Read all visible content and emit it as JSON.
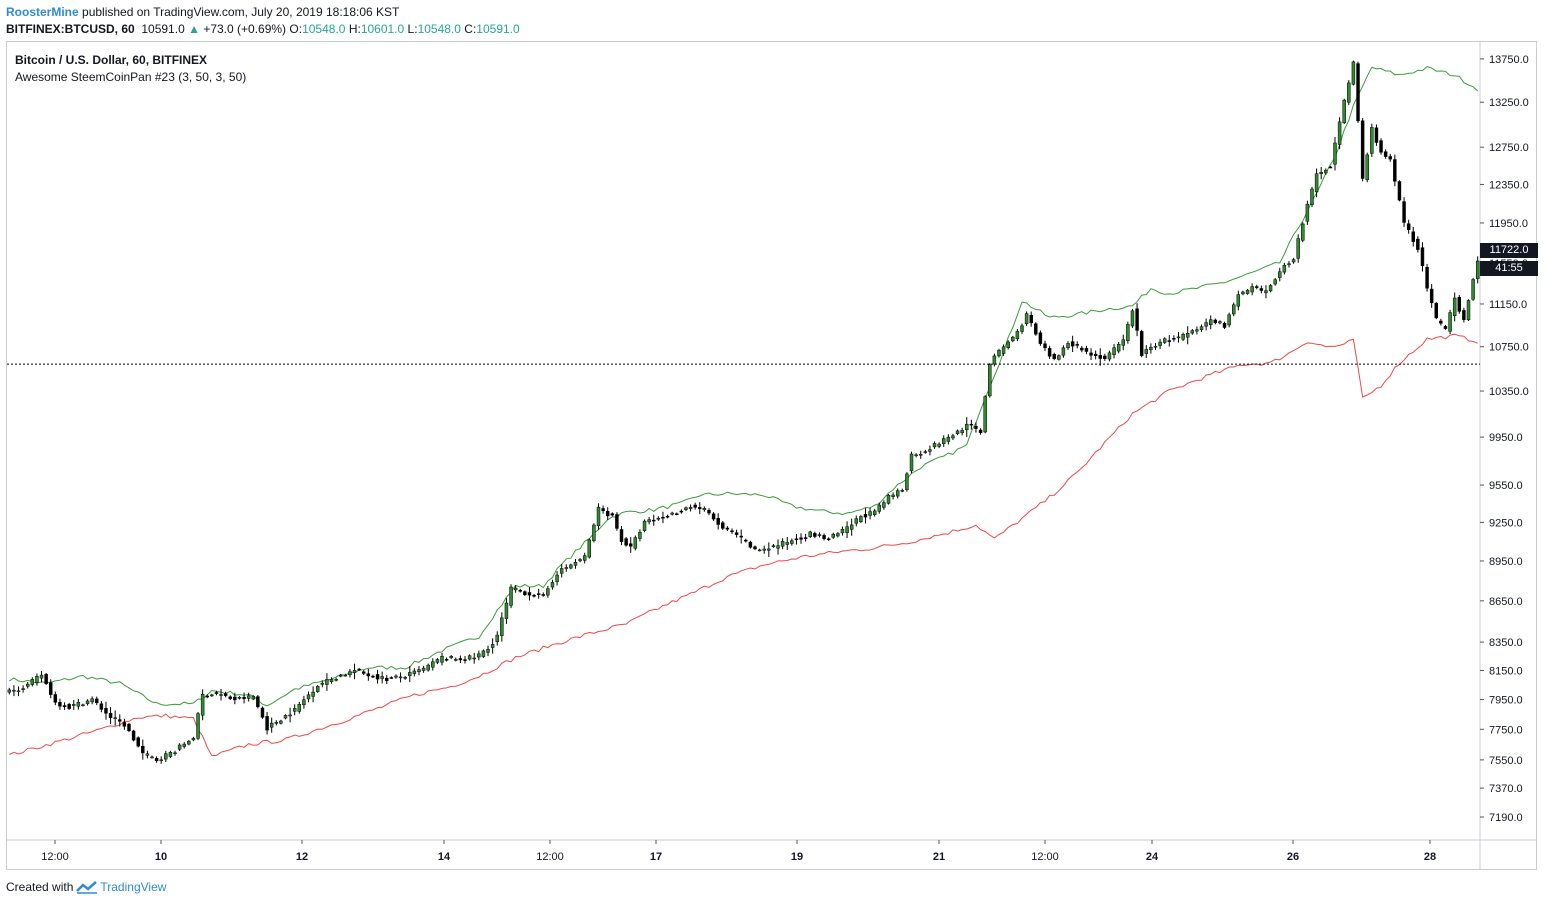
{
  "header": {
    "author": "RoosterMine",
    "published_text": "published on TradingView.com, July 20, 2019 18:18:06 KST",
    "symbol": "BITFINEX:BTCUSD, 60",
    "last": "10591.0",
    "change": "+73.0 (+0.69%)",
    "o_label": "O:",
    "o_value": "10548.0",
    "h_label": "H:",
    "h_value": "10601.0",
    "l_label": "L:",
    "l_value": "10548.0",
    "c_label": "C:",
    "c_value": "10591.0"
  },
  "legend": {
    "title": "Bitcoin / U.S. Dollar, 60, BITFINEX",
    "indicator": "Awesome SteemCoinPan #23 (3, 50, 3, 50)"
  },
  "price_tags": {
    "price": "11722.0",
    "countdown": "41:55"
  },
  "footer": {
    "created_with": "Created with",
    "brand": "TradingView"
  },
  "colors": {
    "upper_band": "#3c9b3c",
    "lower_band": "#f04848",
    "candles": "#000000",
    "up_body": "#2e8b2e"
  },
  "chart_data": {
    "type": "candlestick",
    "x_tick_labels": [
      "12:00",
      "10",
      "12",
      "14",
      "12:00",
      "17",
      "19",
      "21",
      "12:00",
      "24",
      "26",
      "28"
    ],
    "y_tick_labels": [
      "13750.0",
      "13250.0",
      "12750.0",
      "12350.0",
      "11950.0",
      "11550.0",
      "11150.0",
      "10750.0",
      "10350.0",
      "9950.0",
      "9550.0",
      "9250.0",
      "8950.0",
      "8650.0",
      "8350.0",
      "8150.0",
      "7950.0",
      "7750.0",
      "7550.0",
      "7370.0",
      "7190.0"
    ],
    "y_axis_scale": "log",
    "ylim": [
      7050,
      13950
    ],
    "horizontal_line": 10591,
    "close_path": [
      [
        0,
        8000
      ],
      [
        4,
        8050
      ],
      [
        7,
        8120
      ],
      [
        10,
        7930
      ],
      [
        13,
        7900
      ],
      [
        18,
        7950
      ],
      [
        22,
        7830
      ],
      [
        25,
        7780
      ],
      [
        29,
        7590
      ],
      [
        32,
        7550
      ],
      [
        36,
        7610
      ],
      [
        40,
        7700
      ],
      [
        42,
        7980
      ],
      [
        45,
        7990
      ],
      [
        49,
        7950
      ],
      [
        53,
        7970
      ],
      [
        56,
        7760
      ],
      [
        59,
        7820
      ],
      [
        62,
        7880
      ],
      [
        67,
        8050
      ],
      [
        70,
        8090
      ],
      [
        75,
        8150
      ],
      [
        78,
        8120
      ],
      [
        82,
        8090
      ],
      [
        86,
        8110
      ],
      [
        90,
        8160
      ],
      [
        94,
        8240
      ],
      [
        97,
        8230
      ],
      [
        101,
        8240
      ],
      [
        104,
        8300
      ],
      [
        106,
        8400
      ],
      [
        109,
        8740
      ],
      [
        112,
        8710
      ],
      [
        116,
        8680
      ],
      [
        119,
        8860
      ],
      [
        122,
        8920
      ],
      [
        125,
        8980
      ],
      [
        128,
        9360
      ],
      [
        131,
        9300
      ],
      [
        133,
        9110
      ],
      [
        135,
        9050
      ],
      [
        138,
        9250
      ],
      [
        141,
        9280
      ],
      [
        145,
        9330
      ],
      [
        148,
        9380
      ],
      [
        151,
        9350
      ],
      [
        155,
        9200
      ],
      [
        158,
        9150
      ],
      [
        162,
        9030
      ],
      [
        166,
        9060
      ],
      [
        170,
        9110
      ],
      [
        174,
        9160
      ],
      [
        178,
        9120
      ],
      [
        182,
        9200
      ],
      [
        185,
        9300
      ],
      [
        188,
        9330
      ],
      [
        191,
        9450
      ],
      [
        194,
        9520
      ],
      [
        196,
        9800
      ],
      [
        198,
        9820
      ],
      [
        201,
        9880
      ],
      [
        205,
        9970
      ],
      [
        208,
        10050
      ],
      [
        211,
        10000
      ],
      [
        213,
        10600
      ],
      [
        216,
        10750
      ],
      [
        219,
        10880
      ],
      [
        221,
        11050
      ],
      [
        224,
        10770
      ],
      [
        227,
        10620
      ],
      [
        230,
        10800
      ],
      [
        234,
        10700
      ],
      [
        238,
        10640
      ],
      [
        242,
        10800
      ],
      [
        244,
        11100
      ],
      [
        246,
        10680
      ],
      [
        250,
        10800
      ],
      [
        254,
        10830
      ],
      [
        258,
        10900
      ],
      [
        261,
        11000
      ],
      [
        264,
        10950
      ],
      [
        267,
        11230
      ],
      [
        270,
        11300
      ],
      [
        273,
        11260
      ],
      [
        276,
        11470
      ],
      [
        279,
        11600
      ],
      [
        281,
        11960
      ],
      [
        284,
        12450
      ],
      [
        287,
        12560
      ],
      [
        290,
        13250
      ],
      [
        292,
        13700
      ],
      [
        294,
        12400
      ],
      [
        296,
        12950
      ],
      [
        298,
        12700
      ],
      [
        300,
        12600
      ],
      [
        303,
        11950
      ],
      [
        306,
        11700
      ],
      [
        308,
        11300
      ],
      [
        310,
        11000
      ],
      [
        312,
        10900
      ],
      [
        314,
        11200
      ],
      [
        316,
        11000
      ],
      [
        318,
        11400
      ],
      [
        319,
        11550
      ]
    ],
    "upper_band_path": [
      [
        0,
        8090
      ],
      [
        8,
        8060
      ],
      [
        16,
        8110
      ],
      [
        24,
        8060
      ],
      [
        32,
        7920
      ],
      [
        40,
        7920
      ],
      [
        44,
        8010
      ],
      [
        52,
        7980
      ],
      [
        56,
        7910
      ],
      [
        62,
        8020
      ],
      [
        70,
        8090
      ],
      [
        78,
        8170
      ],
      [
        86,
        8170
      ],
      [
        94,
        8290
      ],
      [
        102,
        8390
      ],
      [
        106,
        8580
      ],
      [
        110,
        8760
      ],
      [
        116,
        8760
      ],
      [
        120,
        8920
      ],
      [
        126,
        9120
      ],
      [
        130,
        9280
      ],
      [
        134,
        9330
      ],
      [
        140,
        9350
      ],
      [
        146,
        9400
      ],
      [
        150,
        9470
      ],
      [
        156,
        9480
      ],
      [
        164,
        9470
      ],
      [
        170,
        9380
      ],
      [
        176,
        9340
      ],
      [
        182,
        9320
      ],
      [
        188,
        9380
      ],
      [
        192,
        9520
      ],
      [
        198,
        9700
      ],
      [
        204,
        9800
      ],
      [
        208,
        9880
      ],
      [
        212,
        10300
      ],
      [
        216,
        10700
      ],
      [
        220,
        11180
      ],
      [
        226,
        11020
      ],
      [
        232,
        11050
      ],
      [
        238,
        11100
      ],
      [
        244,
        11130
      ],
      [
        248,
        11300
      ],
      [
        252,
        11250
      ],
      [
        258,
        11300
      ],
      [
        264,
        11360
      ],
      [
        270,
        11450
      ],
      [
        276,
        11550
      ],
      [
        280,
        11900
      ],
      [
        284,
        12250
      ],
      [
        288,
        12650
      ],
      [
        292,
        13200
      ],
      [
        296,
        13650
      ],
      [
        302,
        13560
      ],
      [
        308,
        13640
      ],
      [
        314,
        13560
      ],
      [
        319,
        13400
      ]
    ],
    "lower_band_path": [
      [
        0,
        7580
      ],
      [
        6,
        7630
      ],
      [
        12,
        7680
      ],
      [
        20,
        7750
      ],
      [
        28,
        7830
      ],
      [
        34,
        7840
      ],
      [
        40,
        7820
      ],
      [
        44,
        7570
      ],
      [
        52,
        7650
      ],
      [
        60,
        7680
      ],
      [
        66,
        7740
      ],
      [
        72,
        7800
      ],
      [
        80,
        7890
      ],
      [
        88,
        7980
      ],
      [
        96,
        8040
      ],
      [
        102,
        8110
      ],
      [
        110,
        8240
      ],
      [
        118,
        8330
      ],
      [
        126,
        8410
      ],
      [
        134,
        8480
      ],
      [
        140,
        8580
      ],
      [
        148,
        8700
      ],
      [
        156,
        8830
      ],
      [
        164,
        8920
      ],
      [
        172,
        8980
      ],
      [
        180,
        9020
      ],
      [
        188,
        9050
      ],
      [
        196,
        9100
      ],
      [
        204,
        9170
      ],
      [
        210,
        9230
      ],
      [
        214,
        9120
      ],
      [
        220,
        9280
      ],
      [
        226,
        9450
      ],
      [
        232,
        9650
      ],
      [
        238,
        9900
      ],
      [
        244,
        10150
      ],
      [
        252,
        10350
      ],
      [
        260,
        10480
      ],
      [
        268,
        10590
      ],
      [
        274,
        10600
      ],
      [
        278,
        10690
      ],
      [
        282,
        10800
      ],
      [
        286,
        10750
      ],
      [
        290,
        10760
      ],
      [
        292,
        10820
      ],
      [
        294,
        10280
      ],
      [
        298,
        10400
      ],
      [
        302,
        10600
      ],
      [
        308,
        10820
      ],
      [
        314,
        10850
      ],
      [
        319,
        10800
      ]
    ]
  }
}
